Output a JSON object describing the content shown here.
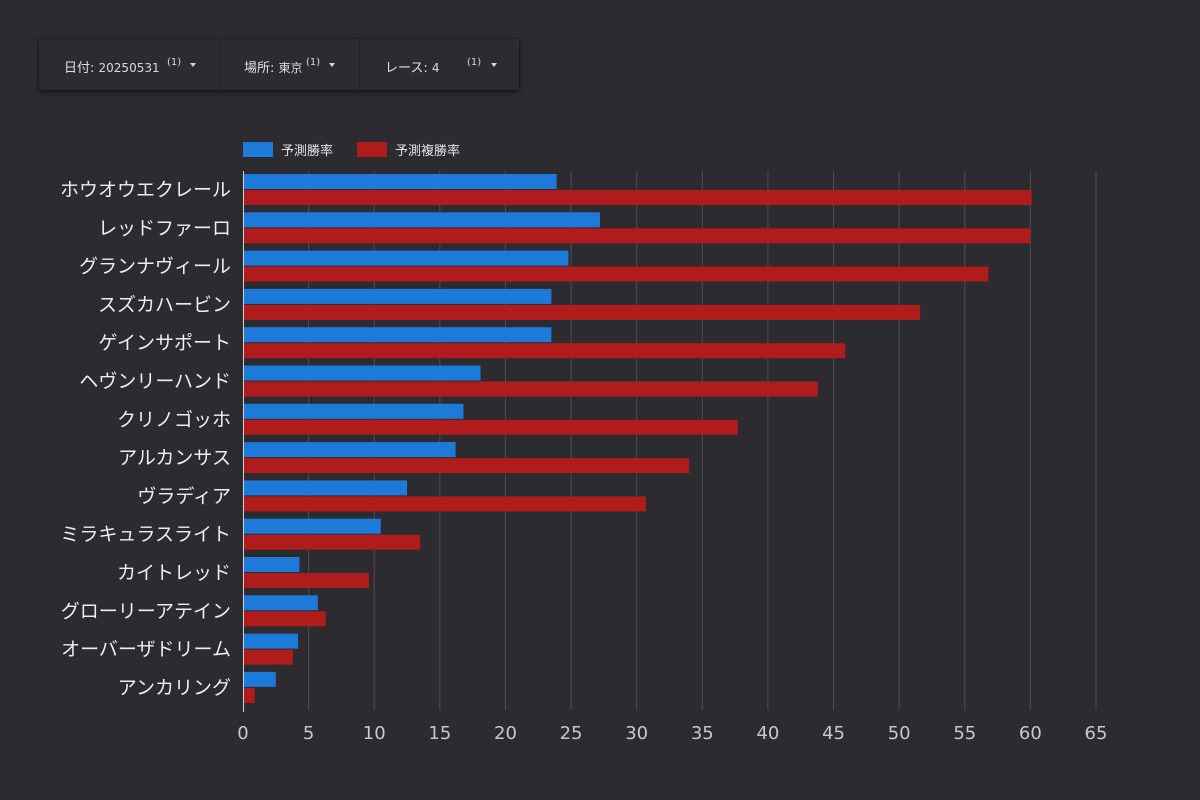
{
  "filters": [
    {
      "label": "日付",
      "value": "20250531",
      "count": "(1)"
    },
    {
      "label": "場所",
      "value": "東京",
      "count": "(1)"
    },
    {
      "label": "レース",
      "value": "4",
      "count": "(1)"
    }
  ],
  "colors": {
    "background": "#2c2b30",
    "series_win": "#1e7ad8",
    "series_place": "#b01c1c",
    "grid": "#4e4d53"
  },
  "chart_data": {
    "type": "bar",
    "orientation": "horizontal",
    "categories": [
      "ホウオウエクレール",
      "レッドファーロ",
      "グランナヴィール",
      "スズカハービン",
      "ゲインサポート",
      "ヘヴンリーハンド",
      "クリノゴッホ",
      "アルカンサス",
      "ヴラディア",
      "ミラキュラスライト",
      "カイトレッド",
      "グローリーアテイン",
      "オーバーザドリーム",
      "アンカリング"
    ],
    "series": [
      {
        "name": "予測勝率",
        "color": "#1e7ad8",
        "values": [
          23.9,
          27.2,
          24.8,
          23.5,
          23.5,
          18.1,
          16.8,
          16.2,
          12.5,
          10.5,
          4.3,
          5.7,
          4.2,
          2.5
        ]
      },
      {
        "name": "予測複勝率",
        "color": "#b01c1c",
        "values": [
          60.1,
          60.0,
          56.8,
          51.6,
          45.9,
          43.8,
          37.7,
          34.0,
          30.7,
          13.5,
          9.6,
          6.3,
          3.8,
          0.9
        ]
      }
    ],
    "xlim": [
      0,
      65
    ],
    "xticks": [
      0,
      5,
      10,
      15,
      20,
      25,
      30,
      35,
      40,
      45,
      50,
      55,
      60,
      65
    ],
    "legend": "top-left",
    "grid": true
  }
}
